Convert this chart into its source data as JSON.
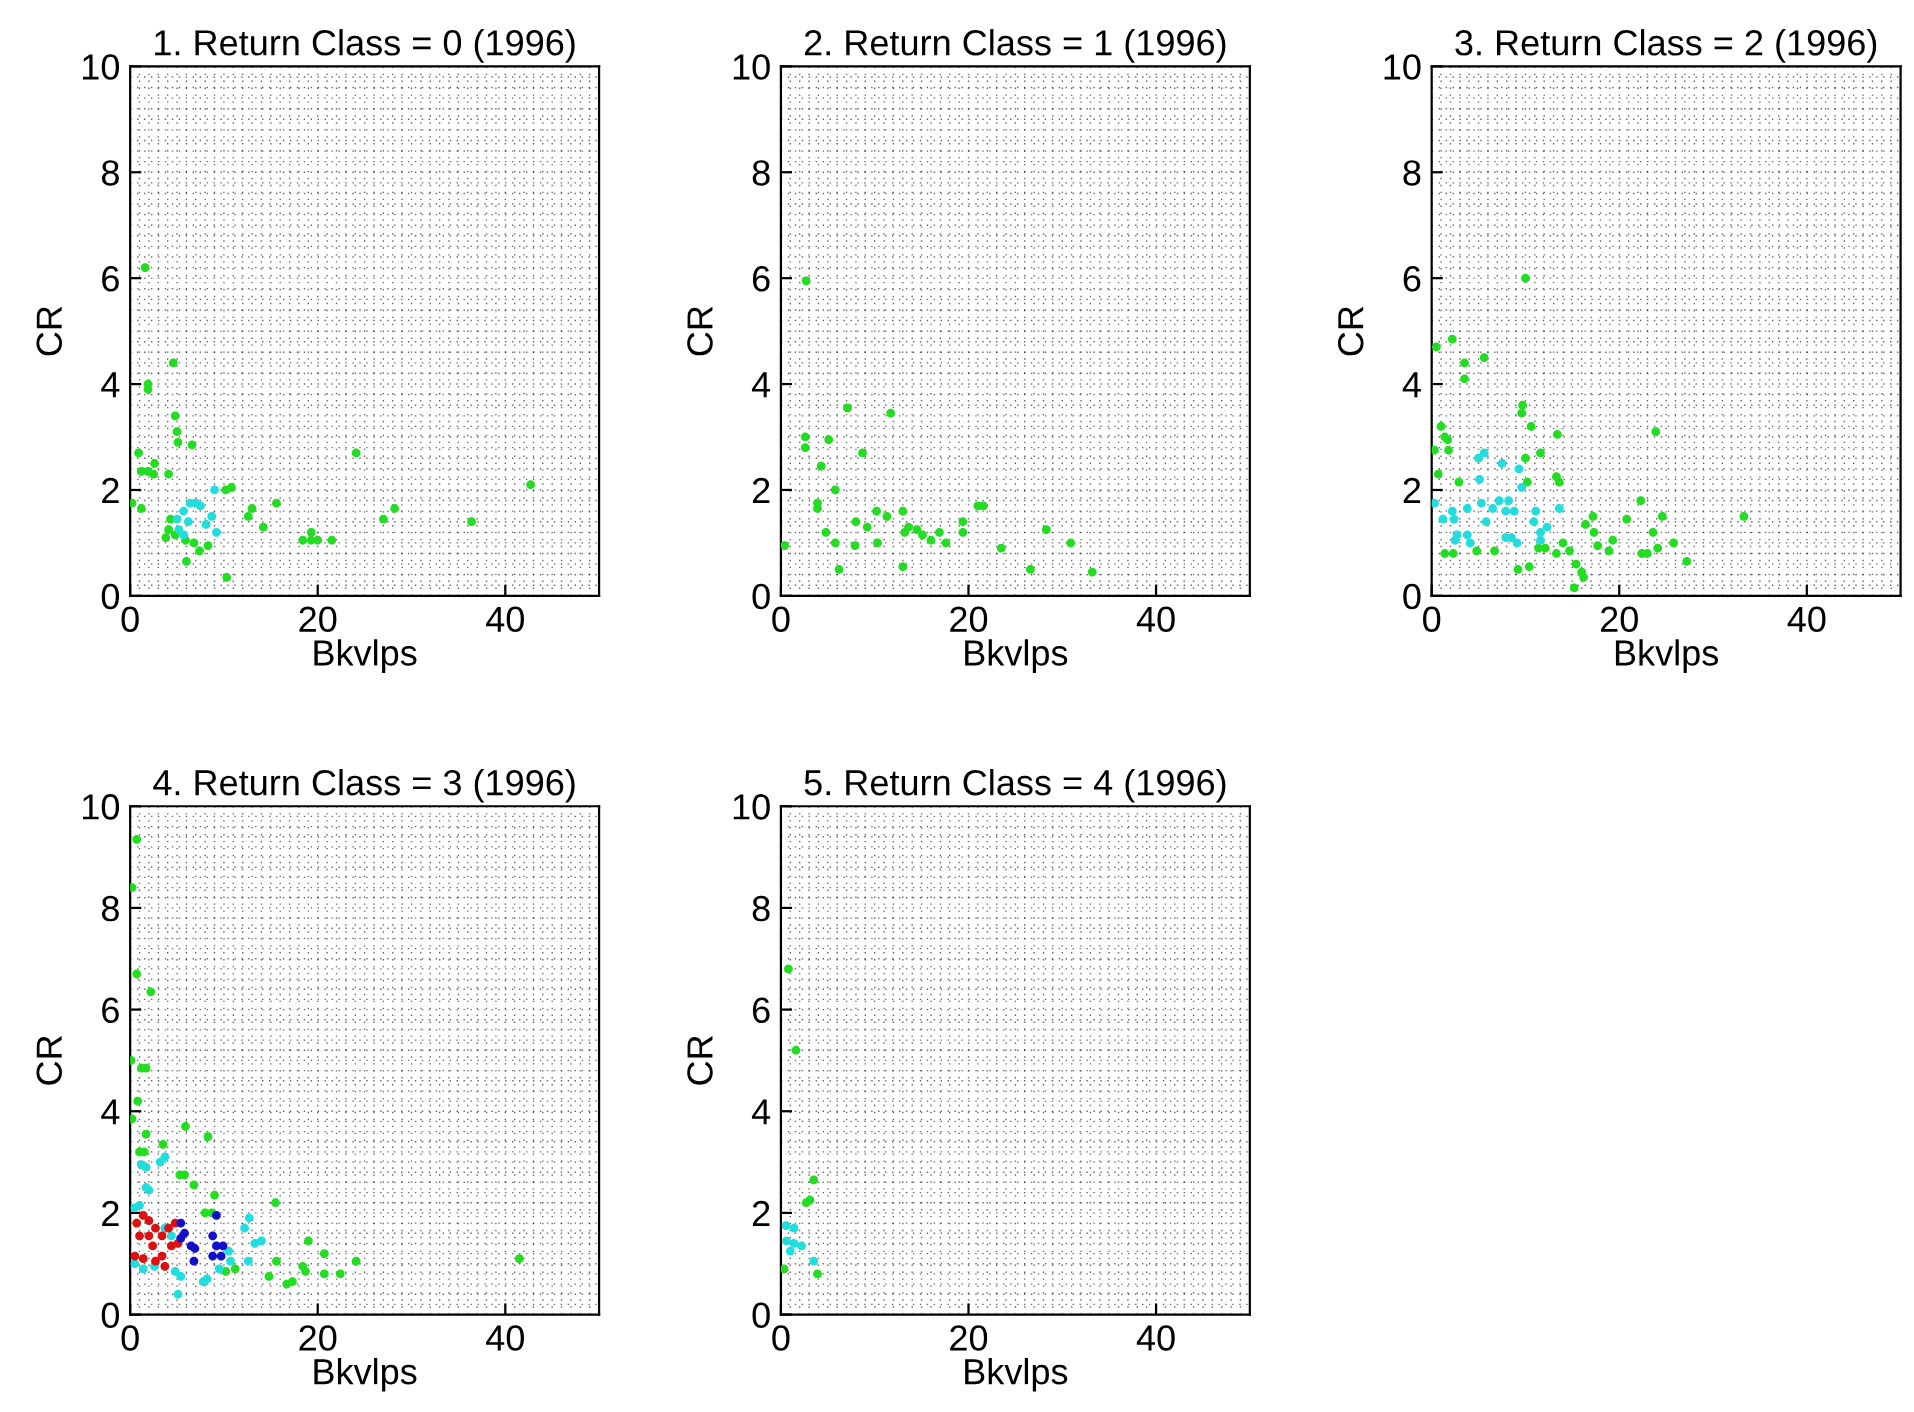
{
  "chart_data": [
    {
      "type": "scatter",
      "title": "1. Return Class = 0 (1996)",
      "xlabel": "Bkvlps",
      "ylabel": "CR",
      "xlim": [
        0,
        50
      ],
      "ylim": [
        0,
        10
      ],
      "xticks": [
        0,
        20,
        40
      ],
      "yticks": [
        0,
        2,
        4,
        6,
        8,
        10
      ],
      "grid": true,
      "marker": "circle",
      "series": [
        {
          "color": "#22dd22",
          "x": [
            1.6,
            4.6,
            1.9,
            1.9,
            4.8,
            5.0,
            5.1,
            6.6,
            0.9,
            2.6,
            1.2,
            1.9,
            2.5,
            4.1,
            0.2,
            1.2,
            4.3,
            3.8,
            4.1,
            4.8,
            5.9,
            6.8,
            7.4,
            8.3,
            6.0,
            10.2,
            10.8,
            10.3,
            13.0,
            12.6,
            14.2,
            15.6,
            18.4,
            19.3,
            19.3,
            20.0,
            21.5,
            24.1,
            27.0,
            28.2,
            36.4,
            42.7
          ],
          "values": [
            6.2,
            4.4,
            4.0,
            3.9,
            3.4,
            3.1,
            2.9,
            2.85,
            2.7,
            2.5,
            2.35,
            2.35,
            2.3,
            2.3,
            1.75,
            1.65,
            1.45,
            1.1,
            1.25,
            1.15,
            1.05,
            1.0,
            0.85,
            0.95,
            0.65,
            2.0,
            2.05,
            0.35,
            1.65,
            1.5,
            1.3,
            1.75,
            1.05,
            1.05,
            1.2,
            1.05,
            1.05,
            2.7,
            1.45,
            1.65,
            1.4,
            2.1
          ]
        },
        {
          "color": "#22dddd",
          "x": [
            5.0,
            5.7,
            6.4,
            7.0,
            7.5,
            5.2,
            5.7,
            6.2,
            8.1,
            9.0,
            9.2,
            8.7
          ],
          "values": [
            1.45,
            1.6,
            1.75,
            1.75,
            1.7,
            1.25,
            1.15,
            1.4,
            1.35,
            2.0,
            1.2,
            1.5
          ]
        }
      ]
    },
    {
      "type": "scatter",
      "title": "2. Return Class = 1 (1996)",
      "xlabel": "Bkvlps",
      "ylabel": "CR",
      "xlim": [
        0,
        50
      ],
      "ylim": [
        0,
        10
      ],
      "xticks": [
        0,
        20,
        40
      ],
      "yticks": [
        0,
        2,
        4,
        6,
        8,
        10
      ],
      "grid": true,
      "marker": "circle",
      "series": [
        {
          "color": "#22dd22",
          "x": [
            2.7,
            0.4,
            2.6,
            2.6,
            5.1,
            7.1,
            11.7,
            4.3,
            8.7,
            3.9,
            3.9,
            5.8,
            4.8,
            5.8,
            6.2,
            8.0,
            7.9,
            9.2,
            10.2,
            11.3,
            10.3,
            13.0,
            13.0,
            13.2,
            13.6,
            14.5,
            15.1,
            16.0,
            16.9,
            17.6,
            19.4,
            19.4,
            21.0,
            21.6,
            23.5,
            26.6,
            28.3,
            30.9,
            33.2
          ],
          "values": [
            5.95,
            0.95,
            3.0,
            2.8,
            2.95,
            3.55,
            3.45,
            2.45,
            2.7,
            1.75,
            1.65,
            2.0,
            1.2,
            1.0,
            0.5,
            1.4,
            0.95,
            1.3,
            1.6,
            1.5,
            1.0,
            1.6,
            0.55,
            1.2,
            1.3,
            1.25,
            1.15,
            1.05,
            1.2,
            1.0,
            1.4,
            1.2,
            1.7,
            1.7,
            0.9,
            0.5,
            1.25,
            1.0,
            0.45
          ]
        }
      ]
    },
    {
      "type": "scatter",
      "title": "3. Return Class = 2 (1996)",
      "xlabel": "Bkvlps",
      "ylabel": "CR",
      "xlim": [
        0,
        50
      ],
      "ylim": [
        0,
        10
      ],
      "xticks": [
        0,
        20,
        40
      ],
      "yticks": [
        0,
        2,
        4,
        6,
        8,
        10
      ],
      "grid": true,
      "marker": "circle",
      "series": [
        {
          "color": "#22dd22",
          "x": [
            10.0,
            0.5,
            2.2,
            3.5,
            5.6,
            3.5,
            9.7,
            9.6,
            10.6,
            13.4,
            11.6,
            10.0,
            1.0,
            1.4,
            1.7,
            1.8,
            0.3,
            0.7,
            2.9,
            10.2,
            13.3,
            13.6,
            23.9,
            22.3,
            24.6,
            17.2,
            16.4,
            17.3,
            20.8,
            18.9,
            17.7,
            19.3,
            23.6,
            22.4,
            23.0,
            24.1,
            25.8,
            27.2,
            33.3,
            1.4,
            2.3,
            4.8,
            6.7,
            9.2,
            10.4,
            11.4,
            12.1,
            13.3,
            14.0,
            14.7,
            15.4,
            16.0,
            16.2,
            15.2
          ],
          "values": [
            6.0,
            4.7,
            4.85,
            4.4,
            4.5,
            4.1,
            3.6,
            3.45,
            3.2,
            3.05,
            2.7,
            2.6,
            3.2,
            3.0,
            2.95,
            2.75,
            2.75,
            2.3,
            2.15,
            2.15,
            2.25,
            2.15,
            3.1,
            1.8,
            1.5,
            1.5,
            1.35,
            1.2,
            1.45,
            0.85,
            0.95,
            1.05,
            1.2,
            0.8,
            0.8,
            0.9,
            1.0,
            0.65,
            1.5,
            0.8,
            0.8,
            0.85,
            0.85,
            0.5,
            0.55,
            0.9,
            0.9,
            0.8,
            1.0,
            0.85,
            0.6,
            0.45,
            0.35,
            0.15
          ]
        },
        {
          "color": "#22dddd",
          "x": [
            0.3,
            1.2,
            2.2,
            2.4,
            2.7,
            2.5,
            3.8,
            4.1,
            3.8,
            5.1,
            5.0,
            5.6,
            7.5,
            9.3,
            9.6,
            5.3,
            6.5,
            7.2,
            8.2,
            7.9,
            8.8,
            5.8,
            7.9,
            8.5,
            9.1,
            11.1,
            10.9,
            11.6,
            12.3,
            11.6,
            13.6
          ],
          "values": [
            1.75,
            1.45,
            1.6,
            1.45,
            1.15,
            1.05,
            1.15,
            1.0,
            1.65,
            2.2,
            2.6,
            2.7,
            2.5,
            2.4,
            2.05,
            1.75,
            1.65,
            1.8,
            1.8,
            1.6,
            1.6,
            1.4,
            1.1,
            1.1,
            1.0,
            1.6,
            1.4,
            1.2,
            1.3,
            1.05,
            1.65
          ]
        }
      ]
    },
    {
      "type": "scatter",
      "title": "4. Return Class = 3 (1996)",
      "xlabel": "Bkvlps",
      "ylabel": "CR",
      "xlim": [
        0,
        50
      ],
      "ylim": [
        0,
        10
      ],
      "xticks": [
        0,
        20,
        40
      ],
      "yticks": [
        0,
        2,
        4,
        6,
        8,
        10
      ],
      "grid": true,
      "marker": "circle",
      "series": [
        {
          "color": "#22dd22",
          "x": [
            0.7,
            0.2,
            0.7,
            2.2,
            0.1,
            1.2,
            1.7,
            0.8,
            0.2,
            1.7,
            1.0,
            1.5,
            3.5,
            5.9,
            8.3,
            5.3,
            5.8,
            6.8,
            9.0,
            8.0,
            8.7,
            15.5,
            19.0,
            20.7,
            24.1,
            15.6,
            18.4,
            18.7,
            14.8,
            16.7,
            17.3,
            20.7,
            22.4,
            10.2,
            11.2,
            41.5
          ],
          "values": [
            9.35,
            8.4,
            6.7,
            6.35,
            5.0,
            4.85,
            4.85,
            4.2,
            3.85,
            3.55,
            3.2,
            3.2,
            3.35,
            3.7,
            3.5,
            2.75,
            2.75,
            2.55,
            2.35,
            2.0,
            2.0,
            2.2,
            1.45,
            1.2,
            1.05,
            1.05,
            0.95,
            0.85,
            0.75,
            0.6,
            0.65,
            0.8,
            0.8,
            0.85,
            0.9,
            1.1
          ]
        },
        {
          "color": "#22dddd",
          "x": [
            0.5,
            1.0,
            2.0,
            1.7,
            1.2,
            1.7,
            3.2,
            3.7,
            0.5,
            1.4,
            2.6,
            4.8,
            5.4,
            5.1,
            7.8,
            8.2,
            10.7,
            12.6,
            13.3,
            12.2,
            12.7,
            14.0,
            10.5,
            9.5,
            4.4,
            3.7
          ],
          "values": [
            2.1,
            2.15,
            2.45,
            2.5,
            2.95,
            2.9,
            3.0,
            3.1,
            1.0,
            0.9,
            0.95,
            0.85,
            0.75,
            0.4,
            0.65,
            0.7,
            1.05,
            1.05,
            1.4,
            1.7,
            1.9,
            1.45,
            1.25,
            0.9,
            1.55,
            1.7
          ]
        },
        {
          "color": "#dd1111",
          "x": [
            1.4,
            2.0,
            0.7,
            1.0,
            0.5,
            1.4,
            2.4,
            2.7,
            3.4,
            3.4,
            4.1,
            4.4,
            2.7,
            2.0,
            3.7,
            4.8,
            5.1
          ],
          "values": [
            1.95,
            1.85,
            1.8,
            1.55,
            1.15,
            1.1,
            1.35,
            1.05,
            1.15,
            1.55,
            1.7,
            1.35,
            1.7,
            1.55,
            0.95,
            1.8,
            1.4
          ]
        },
        {
          "color": "#1111cc",
          "x": [
            5.4,
            5.8,
            6.5,
            6.9,
            6.8,
            9.2,
            8.8,
            9.2,
            9.9,
            8.8,
            9.7,
            5.4
          ],
          "values": [
            1.8,
            1.6,
            1.35,
            1.3,
            1.05,
            1.95,
            1.55,
            1.35,
            1.35,
            1.15,
            1.15,
            1.5
          ]
        }
      ]
    },
    {
      "type": "scatter",
      "title": "5. Return Class = 4 (1996)",
      "xlabel": "Bkvlps",
      "ylabel": "CR",
      "xlim": [
        0,
        50
      ],
      "ylim": [
        0,
        10
      ],
      "xticks": [
        0,
        20,
        40
      ],
      "yticks": [
        0,
        2,
        4,
        6,
        8,
        10
      ],
      "grid": true,
      "marker": "circle",
      "series": [
        {
          "color": "#22dd22",
          "x": [
            0.8,
            1.6,
            3.5,
            3.1,
            2.7,
            0.35,
            3.9
          ],
          "values": [
            6.8,
            5.2,
            2.65,
            2.25,
            2.2,
            0.9,
            0.8
          ]
        },
        {
          "color": "#22dddd",
          "x": [
            0.55,
            1.4,
            0.6,
            1.4,
            2.2,
            1.0,
            3.5
          ],
          "values": [
            1.75,
            1.7,
            1.45,
            1.4,
            1.35,
            1.25,
            1.05
          ]
        }
      ]
    }
  ]
}
